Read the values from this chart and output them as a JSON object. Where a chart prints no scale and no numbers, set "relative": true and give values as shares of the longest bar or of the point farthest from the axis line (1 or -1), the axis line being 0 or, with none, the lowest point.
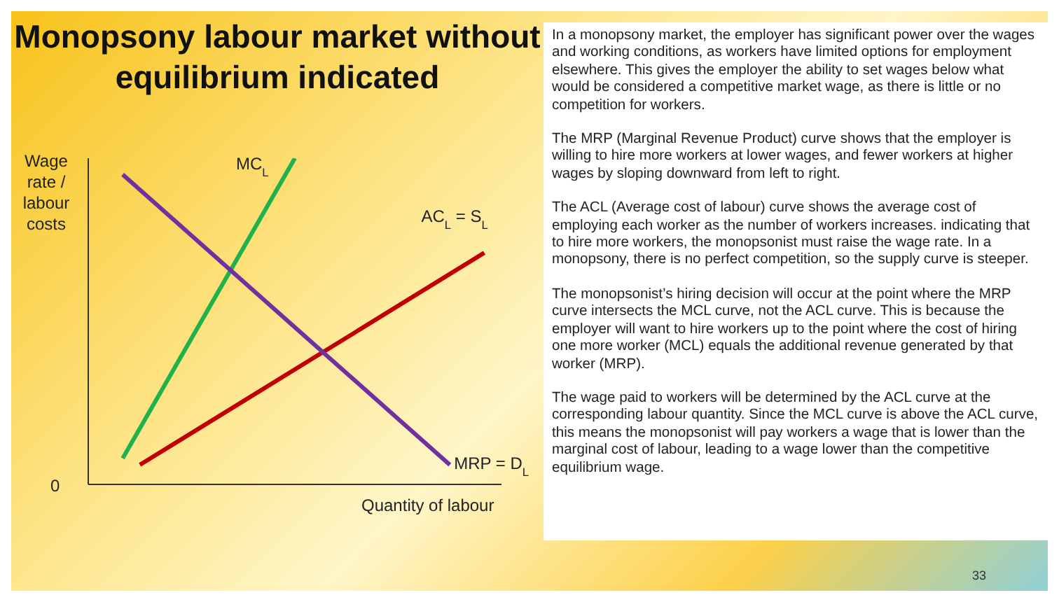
{
  "chart_data": {
    "type": "line",
    "relative": true,
    "title": "Monopsony labour market without equilibrium indicated",
    "xlabel": "Quantity of labour",
    "ylabel": "Wage rate / labour costs",
    "categories": [
      null,
      null,
      null,
      null,
      null,
      null,
      null,
      null,
      null,
      null,
      null,
      null,
      null,
      null,
      null,
      null,
      null,
      null,
      null,
      null,
      null,
      null,
      null,
      null,
      null
    ],
    "series": [
      {
        "name": "MC$_{L}$",
        "color": "#1fb14b",
        "values": [
          null,
          null,
          0.08,
          null,
          null,
          null,
          null,
          null,
          null,
          null,
          null,
          null,
          1,
          null,
          null,
          null,
          null,
          null,
          null,
          null,
          null,
          null,
          null,
          null,
          null
        ]
      },
      {
        "name": "AC$_{L}$ = S$_{L}$",
        "color": "#c00000",
        "values": [
          null,
          null,
          null,
          0.06,
          null,
          null,
          null,
          null,
          null,
          null,
          null,
          null,
          null,
          null,
          null,
          null,
          null,
          null,
          null,
          null,
          null,
          null,
          null,
          0.71,
          null
        ]
      },
      {
        "name": "MRP = D$_{L}$",
        "color": "#7030a0",
        "values": [
          null,
          null,
          0.95,
          null,
          null,
          null,
          null,
          null,
          null,
          null,
          null,
          null,
          null,
          null,
          null,
          null,
          null,
          null,
          null,
          null,
          null,
          0.06,
          null,
          null,
          null
        ]
      }
    ],
    "marker": "none",
    "line_style": "solid",
    "grid": false,
    "legend": false,
    "annotations": [
      "0",
      "In a monopsony market, the employer has significant power over the wages and working conditions, as workers have limited options for employment elsewhere. This gives the employer the ability to set wages below what would be considered a competitive market wage, as there is little or no competition for workers.",
      "The MRP (Marginal Revenue Product) curve shows that the employer is willing to hire more workers at lower wages, and fewer workers at higher wages by sloping downward from left to right.",
      "The ACL (Average cost of labour) curve shows the average cost of employing each worker as the number of workers increases. indicating that to hire more workers, the monopsonist must raise the wage rate. In a monopsony, there is no perfect competition, so the supply curve is steeper.",
      "The monopsonist’s hiring decision will occur at the point where the MRP curve intersects the MCL curve, not the ACL curve. This is because the employer will want to hire workers up to the point where the cost of hiring one more worker (MCL) equals the additional revenue generated by that worker (MRP).",
      "The wage paid to workers will be determined by the ACL curve at the corresponding labour quantity. Since the MCL curve is above the ACL curve, this means the monopsonist will pay workers a wage that is lower than the marginal cost of labour, leading to a wage lower than the competitive equilibrium wage.",
      "33"
    ]
  }
}
